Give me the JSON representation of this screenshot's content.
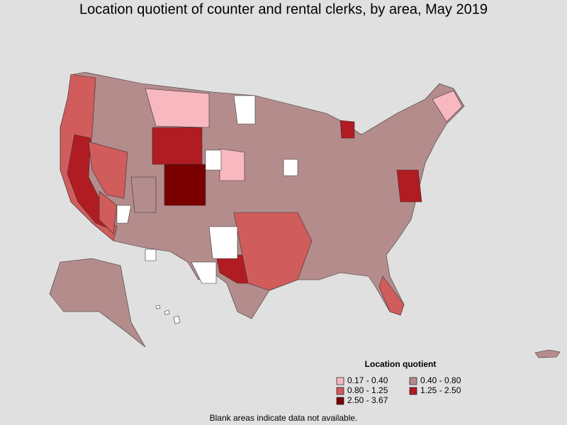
{
  "title": "Location quotient of counter and rental clerks, by area, May 2019",
  "legend": {
    "title": "Location quotient",
    "items": [
      {
        "label": "0.17 - 0.40",
        "color": "#f7b8c0"
      },
      {
        "label": "0.40 - 0.80",
        "color": "#b58c8c"
      },
      {
        "label": "0.80 - 1.25",
        "color": "#d05c5c"
      },
      {
        "label": "1.25 - 2.50",
        "color": "#b01c22"
      },
      {
        "label": "2.50 - 3.67",
        "color": "#7a0000"
      }
    ]
  },
  "footnote": "Blank areas indicate data not available."
}
